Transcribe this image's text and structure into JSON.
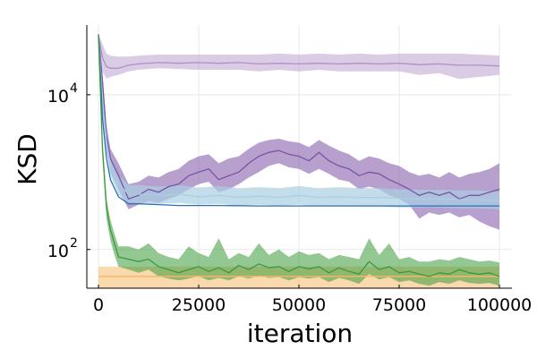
{
  "chart_data": {
    "type": "line",
    "xlabel": "iteration",
    "ylabel": "KSD",
    "xlim": [
      0,
      100000
    ],
    "ylim_log10": [
      1.5,
      4.9
    ],
    "yscale": "log",
    "x_ticks": [
      {
        "value": 0,
        "label": "0"
      },
      {
        "value": 25000,
        "label": "25000"
      },
      {
        "value": 50000,
        "label": "50000"
      },
      {
        "value": 75000,
        "label": "75000"
      },
      {
        "value": 100000,
        "label": "100000"
      }
    ],
    "y_ticks": [
      {
        "value": 100,
        "label_base": "10",
        "label_exp": "2"
      },
      {
        "value": 10000,
        "label_base": "10",
        "label_exp": "4"
      }
    ],
    "grid": true,
    "legend": "none",
    "series": [
      {
        "color": "#b08fc7",
        "band_opacity": 0.45,
        "x": [
          0,
          1000,
          2000,
          3000,
          5000,
          7500,
          10000,
          15000,
          20000,
          25000,
          30000,
          35000,
          40000,
          45000,
          50000,
          55000,
          60000,
          65000,
          70000,
          75000,
          80000,
          85000,
          90000,
          95000,
          100000
        ],
        "y": [
          60000,
          30000,
          23000,
          22000,
          22000,
          24000,
          25000,
          26000,
          25500,
          26000,
          25500,
          26000,
          25000,
          25500,
          25000,
          25500,
          25000,
          25500,
          25000,
          25500,
          24500,
          25000,
          24000,
          24000,
          23500
        ],
        "lower": [
          60000,
          20000,
          16000,
          17000,
          18000,
          20000,
          21000,
          22000,
          21500,
          21000,
          21000,
          21000,
          20000,
          21000,
          20000,
          21000,
          20000,
          20000,
          20000,
          20000,
          18000,
          19000,
          16000,
          17000,
          18000
        ],
        "upper": [
          60000,
          45000,
          34000,
          32000,
          31000,
          31000,
          32000,
          33000,
          33000,
          33000,
          33000,
          33000,
          33000,
          34000,
          33000,
          34000,
          33000,
          34000,
          33000,
          34000,
          34000,
          34000,
          34000,
          33000,
          32000
        ]
      },
      {
        "color": "#7b52a6",
        "band_opacity": 0.55,
        "x": [
          0,
          1000,
          2000,
          3000,
          5000,
          7500,
          10000,
          12500,
          15000,
          17500,
          20000,
          22500,
          25000,
          27500,
          30000,
          32500,
          35000,
          37500,
          40000,
          42500,
          45000,
          47500,
          50000,
          52500,
          55000,
          57500,
          60000,
          62500,
          65000,
          67500,
          70000,
          72500,
          75000,
          77500,
          80000,
          82500,
          85000,
          87500,
          90000,
          92500,
          95000,
          97500,
          100000
        ],
        "y": [
          60000,
          15000,
          3000,
          1500,
          900,
          450,
          500,
          600,
          550,
          650,
          700,
          900,
          1000,
          1100,
          800,
          900,
          1000,
          1300,
          1600,
          1800,
          1900,
          1700,
          1600,
          1400,
          1800,
          1400,
          1200,
          1100,
          900,
          1000,
          950,
          800,
          700,
          600,
          500,
          550,
          500,
          550,
          450,
          500,
          500,
          550,
          600
        ],
        "lower": [
          60000,
          12000,
          2000,
          1000,
          600,
          330,
          380,
          420,
          400,
          450,
          500,
          600,
          700,
          750,
          550,
          600,
          700,
          850,
          1000,
          1200,
          1300,
          1150,
          1100,
          950,
          1100,
          950,
          800,
          750,
          600,
          650,
          600,
          500,
          450,
          380,
          250,
          300,
          280,
          300,
          260,
          280,
          230,
          200,
          180
        ],
        "upper": [
          60000,
          18000,
          4000,
          2000,
          1300,
          700,
          750,
          900,
          850,
          1000,
          1100,
          1400,
          1600,
          1700,
          1300,
          1500,
          1600,
          2000,
          2400,
          2600,
          2700,
          2500,
          2400,
          2100,
          2600,
          2200,
          1900,
          1700,
          1400,
          1600,
          1500,
          1300,
          1200,
          1000,
          900,
          950,
          850,
          1000,
          850,
          950,
          1000,
          1100,
          1300
        ]
      },
      {
        "color": "#a9cfe3",
        "band_opacity": 0.7,
        "x": [
          0,
          1000,
          2000,
          3000,
          5000,
          7500,
          10000,
          15000,
          20000,
          25000,
          30000,
          35000,
          40000,
          45000,
          50000,
          55000,
          60000,
          65000,
          70000,
          75000,
          80000,
          85000,
          90000,
          95000,
          100000
        ],
        "y": [
          60000,
          8000,
          2500,
          1200,
          700,
          520,
          520,
          500,
          520,
          480,
          500,
          470,
          490,
          470,
          500,
          470,
          480,
          470,
          470,
          460,
          450,
          450,
          440,
          440,
          430
        ],
        "lower": [
          60000,
          5000,
          1800,
          900,
          500,
          400,
          400,
          390,
          400,
          380,
          390,
          370,
          380,
          370,
          380,
          360,
          370,
          360,
          360,
          350,
          350,
          350,
          340,
          340,
          330
        ],
        "upper": [
          60000,
          12000,
          3500,
          1600,
          900,
          680,
          680,
          650,
          680,
          630,
          660,
          620,
          640,
          620,
          660,
          620,
          640,
          620,
          620,
          600,
          590,
          590,
          580,
          580,
          560
        ]
      },
      {
        "color": "#2b6fb6",
        "band_opacity": 0,
        "x": [
          0,
          1000,
          2000,
          3000,
          5000,
          7500,
          10000,
          15000,
          20000,
          30000,
          40000,
          50000,
          60000,
          70000,
          80000,
          90000,
          100000
        ],
        "y": [
          60000,
          5000,
          1500,
          800,
          480,
          390,
          390,
          380,
          370,
          370,
          365,
          365,
          365,
          365,
          365,
          365,
          365
        ],
        "lower": [],
        "upper": []
      },
      {
        "color": "#f5b96a",
        "band_opacity": 0.55,
        "x": [
          0,
          100000
        ],
        "y": [
          45,
          45
        ],
        "lower": [
          31,
          31
        ],
        "upper": [
          60,
          60
        ]
      },
      {
        "color": "#3a9a3a",
        "band_opacity": 0.55,
        "x": [
          0,
          1000,
          2000,
          3000,
          4000,
          5000,
          7500,
          10000,
          12500,
          15000,
          17500,
          20000,
          22500,
          25000,
          27500,
          30000,
          32500,
          35000,
          37500,
          40000,
          42500,
          45000,
          47500,
          50000,
          52500,
          55000,
          57500,
          60000,
          62500,
          65000,
          67500,
          70000,
          72500,
          75000,
          77500,
          80000,
          82500,
          85000,
          87500,
          90000,
          92500,
          95000,
          97500,
          100000
        ],
        "y": [
          60000,
          2000,
          350,
          180,
          120,
          80,
          75,
          70,
          75,
          60,
          55,
          50,
          55,
          60,
          52,
          58,
          50,
          62,
          55,
          65,
          58,
          60,
          52,
          60,
          56,
          60,
          50,
          58,
          52,
          48,
          70,
          55,
          60,
          50,
          52,
          48,
          45,
          50,
          48,
          55,
          50,
          48,
          50,
          45
        ],
        "lower": [
          60000,
          1500,
          250,
          130,
          85,
          60,
          55,
          50,
          55,
          45,
          42,
          40,
          42,
          45,
          40,
          43,
          40,
          45,
          42,
          46,
          43,
          44,
          40,
          44,
          42,
          44,
          38,
          43,
          40,
          36,
          48,
          41,
          44,
          38,
          40,
          36,
          34,
          38,
          36,
          40,
          37,
          36,
          37,
          34
        ],
        "upper": [
          60000,
          2600,
          450,
          240,
          160,
          110,
          110,
          100,
          120,
          90,
          80,
          75,
          110,
          90,
          80,
          140,
          75,
          90,
          80,
          120,
          85,
          100,
          80,
          95,
          85,
          90,
          75,
          85,
          80,
          75,
          140,
          85,
          120,
          75,
          80,
          70,
          70,
          75,
          72,
          80,
          75,
          70,
          72,
          68
        ]
      }
    ]
  }
}
